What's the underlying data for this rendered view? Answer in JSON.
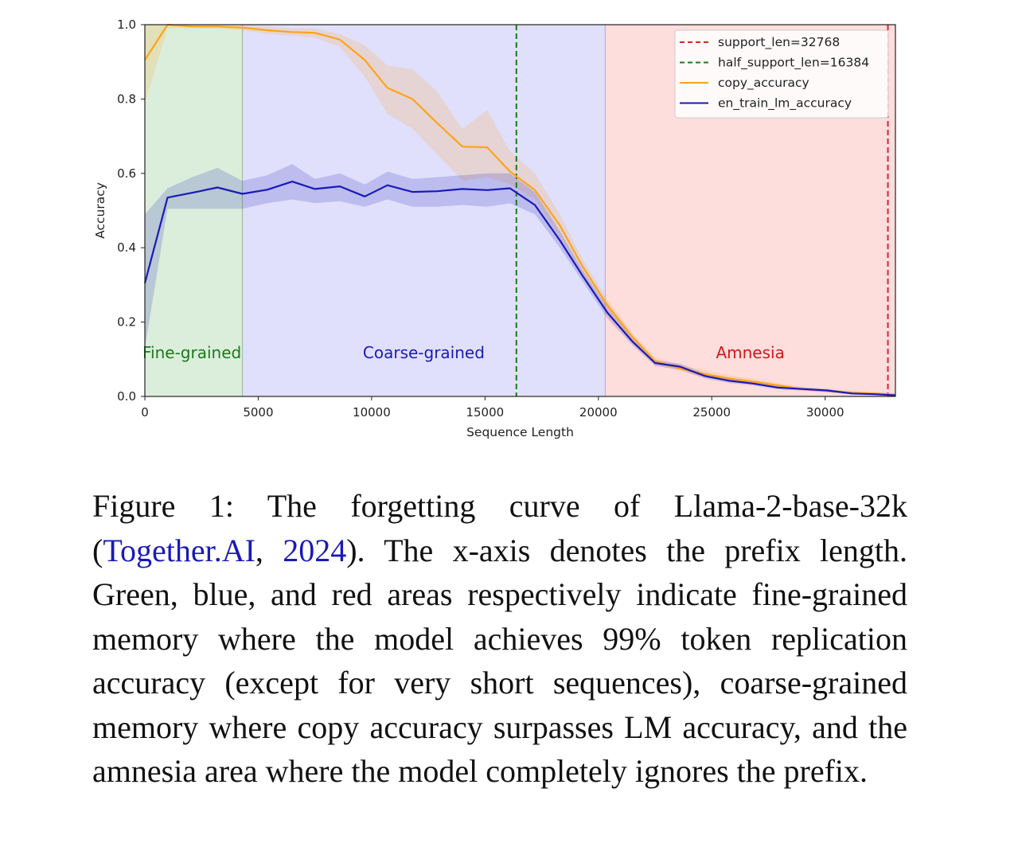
{
  "chart_data": {
    "type": "line",
    "xlabel": "Sequence Length",
    "ylabel": "Accuracy",
    "xlim": [
      0,
      33100
    ],
    "ylim": [
      0,
      1.0
    ],
    "xticks": [
      0,
      5000,
      10000,
      15000,
      20000,
      25000,
      30000
    ],
    "xtick_labels": [
      "0",
      "5000",
      "10000",
      "15000",
      "20000",
      "25000",
      "30000"
    ],
    "yticks": [
      0,
      0.2,
      0.4,
      0.6,
      0.8,
      1.0
    ],
    "ytick_labels": [
      "0.0",
      "0.2",
      "0.4",
      "0.6",
      "0.8",
      "1.0"
    ],
    "regions": [
      {
        "name": "Fine-grained",
        "x0": 0,
        "x1": 4300,
        "color": "#cfe8cf",
        "label_color": "#1a7a1a"
      },
      {
        "name": "Coarse-grained",
        "x0": 4300,
        "x1": 20300,
        "color": "#d6d6fb",
        "label_color": "#1a1ab8"
      },
      {
        "name": "Amnesia",
        "x0": 20300,
        "x1": 33100,
        "color": "#fdd2d2",
        "label_color": "#d01818"
      }
    ],
    "vlines": [
      {
        "name": "support_len=32768",
        "x": 32768,
        "color": "#d62728"
      },
      {
        "name": "half_support_len=16384",
        "x": 16384,
        "color": "#1a7a1a"
      }
    ],
    "series": [
      {
        "name": "copy_accuracy",
        "color": "#ffa319",
        "x": [
          0,
          1000,
          2100,
          3200,
          4300,
          5400,
          6500,
          7500,
          8600,
          9700,
          10700,
          11800,
          12900,
          14000,
          15100,
          16100,
          17200,
          18300,
          19300,
          20400,
          21500,
          22500,
          23600,
          24700,
          25800,
          26800,
          27900,
          29000,
          30100,
          31200,
          32200,
          33100
        ],
        "values": [
          0.905,
          1.0,
          0.995,
          0.995,
          0.992,
          0.985,
          0.98,
          0.978,
          0.96,
          0.905,
          0.83,
          0.8,
          0.735,
          0.672,
          0.67,
          0.605,
          0.555,
          0.46,
          0.35,
          0.245,
          0.16,
          0.095,
          0.075,
          0.06,
          0.048,
          0.04,
          0.03,
          0.02,
          0.015,
          0.01,
          0.008,
          0.005
        ],
        "lower": [
          0.79,
          0.99,
          0.99,
          0.99,
          0.985,
          0.975,
          0.97,
          0.965,
          0.94,
          0.86,
          0.76,
          0.72,
          0.65,
          0.58,
          0.59,
          0.57,
          0.53,
          0.43,
          0.33,
          0.23,
          0.15,
          0.085,
          0.068,
          0.052,
          0.04,
          0.033,
          0.024,
          0.015,
          0.01,
          0.006,
          0.004,
          0.002
        ],
        "upper": [
          1.0,
          1.0,
          1.0,
          1.0,
          0.998,
          0.995,
          0.99,
          0.99,
          0.975,
          0.945,
          0.89,
          0.88,
          0.82,
          0.72,
          0.77,
          0.66,
          0.6,
          0.49,
          0.37,
          0.26,
          0.17,
          0.105,
          0.085,
          0.07,
          0.056,
          0.048,
          0.036,
          0.026,
          0.02,
          0.015,
          0.012,
          0.008
        ]
      },
      {
        "name": "en_train_lm_accuracy",
        "color": "#1a1ab8",
        "x": [
          0,
          1000,
          2100,
          3200,
          4300,
          5400,
          6500,
          7500,
          8600,
          9700,
          10700,
          11800,
          12900,
          14000,
          15100,
          16100,
          17200,
          18300,
          19300,
          20400,
          21500,
          22500,
          23600,
          24700,
          25800,
          26800,
          27900,
          29000,
          30100,
          31200,
          32200,
          33100
        ],
        "values": [
          0.305,
          0.535,
          0.548,
          0.562,
          0.545,
          0.556,
          0.578,
          0.558,
          0.565,
          0.538,
          0.568,
          0.55,
          0.552,
          0.558,
          0.555,
          0.56,
          0.515,
          0.42,
          0.325,
          0.225,
          0.148,
          0.09,
          0.08,
          0.055,
          0.042,
          0.035,
          0.024,
          0.02,
          0.016,
          0.008,
          0.006,
          0.003
        ],
        "lower": [
          0.13,
          0.505,
          0.505,
          0.505,
          0.505,
          0.52,
          0.53,
          0.52,
          0.525,
          0.51,
          0.53,
          0.51,
          0.51,
          0.515,
          0.51,
          0.52,
          0.49,
          0.4,
          0.31,
          0.21,
          0.138,
          0.082,
          0.072,
          0.048,
          0.036,
          0.03,
          0.019,
          0.016,
          0.012,
          0.005,
          0.003,
          0.001
        ],
        "upper": [
          0.49,
          0.56,
          0.59,
          0.615,
          0.58,
          0.595,
          0.625,
          0.585,
          0.6,
          0.57,
          0.605,
          0.585,
          0.59,
          0.595,
          0.6,
          0.6,
          0.55,
          0.445,
          0.34,
          0.24,
          0.158,
          0.098,
          0.088,
          0.062,
          0.048,
          0.04,
          0.029,
          0.024,
          0.02,
          0.011,
          0.009,
          0.005
        ]
      }
    ],
    "legend": {
      "position": "top-right",
      "entries": [
        {
          "label": "support_len=32768",
          "color": "#d62728",
          "style": "dashed"
        },
        {
          "label": "half_support_len=16384",
          "color": "#1a7a1a",
          "style": "dashed"
        },
        {
          "label": "copy_accuracy",
          "color": "#ffa319",
          "style": "solid"
        },
        {
          "label": "en_train_lm_accuracy",
          "color": "#1a1ab8",
          "style": "solid"
        }
      ]
    }
  },
  "caption": {
    "prefix": "Figure 1: The forgetting curve of Llama-2-base-32k (",
    "cite_name": "Together.AI",
    "cite_sep": ", ",
    "cite_year": "2024",
    "suffix": "). The x-axis denotes the prefix length. Green, blue, and red areas respectively indicate fine-grained memory where the model achieves 99% token replication accuracy (except for very short sequences), coarse-grained memory where copy accuracy surpasses LM accuracy, and the amnesia area where the model completely ignores the prefix."
  }
}
